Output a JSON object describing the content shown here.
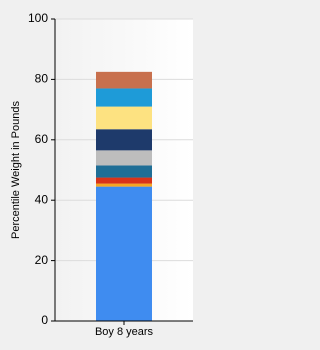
{
  "chart_data": {
    "type": "stacked_bar",
    "categories": [
      "Boy 8 years"
    ],
    "series": [
      {
        "color": "#3f8cf0",
        "values": [
          44.5
        ]
      },
      {
        "color": "#f5a623",
        "values": [
          1
        ]
      },
      {
        "color": "#d9331a",
        "values": [
          2
        ]
      },
      {
        "color": "#1f6e96",
        "values": [
          4
        ]
      },
      {
        "color": "#bdbdbd",
        "values": [
          5
        ]
      },
      {
        "color": "#1e3a6b",
        "values": [
          7
        ]
      },
      {
        "color": "#fde281",
        "values": [
          7.5
        ]
      },
      {
        "color": "#1e9bd8",
        "values": [
          6
        ]
      },
      {
        "color": "#c8704d",
        "values": [
          5.5
        ]
      }
    ],
    "ylabel": "Percentile Weight in Pounds",
    "ylim": [
      0,
      100
    ],
    "yticks": [
      0,
      20,
      40,
      60,
      80,
      100
    ],
    "grid": true
  }
}
